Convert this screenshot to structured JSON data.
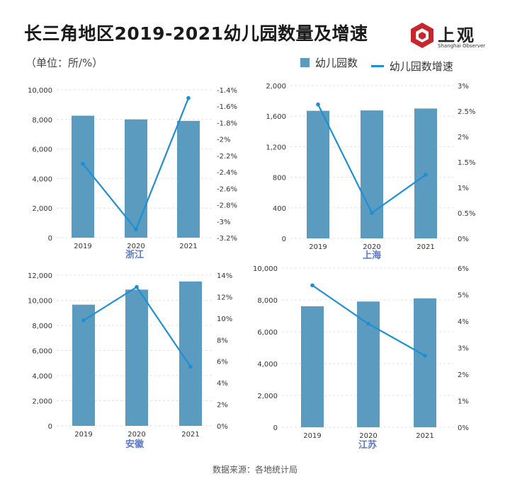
{
  "title": "长三角地区2019-2021幼儿园数量及增速",
  "unit": "（单位：所/%）",
  "logo": {
    "name": "上观",
    "sub": "Shanghai Observer"
  },
  "legend": {
    "bar": "幼儿园数",
    "line": "幼儿园数增速"
  },
  "source": "数据来源：各地统计局",
  "colors": {
    "bar": "#5b9bc0",
    "line": "#1e8fd2",
    "label": "#5b78c9",
    "logo_red": "#c8262c"
  },
  "chart_data": [
    {
      "type": "bar",
      "region": "浙江",
      "categories": [
        "2019",
        "2020",
        "2021"
      ],
      "series": [
        {
          "name": "幼儿园数",
          "type": "bar",
          "axis": "left",
          "values": [
            8250,
            8000,
            7900
          ]
        },
        {
          "name": "幼儿园数增速",
          "type": "line",
          "axis": "right",
          "values": [
            -2.3,
            -3.1,
            -1.5
          ]
        }
      ],
      "ylim_left": [
        0,
        10000
      ],
      "yticks_left": [
        "0",
        "2,000",
        "4,000",
        "6,000",
        "8,000",
        "10,000"
      ],
      "ylim_right": [
        -3.2,
        -1.4
      ],
      "yticks_right": [
        "-3.2%",
        "-3%",
        "-2.8%",
        "-2.6%",
        "-2.4%",
        "-2.2%",
        "-2%",
        "-1.8%",
        "-1.6%",
        "-1.4%"
      ],
      "grid": true
    },
    {
      "type": "bar",
      "region": "上海",
      "categories": [
        "2019",
        "2020",
        "2021"
      ],
      "series": [
        {
          "name": "幼儿园数",
          "type": "bar",
          "axis": "left",
          "values": [
            1670,
            1675,
            1700
          ]
        },
        {
          "name": "幼儿园数增速",
          "type": "line",
          "axis": "right",
          "values": [
            2.63,
            0.5,
            1.25
          ]
        }
      ],
      "ylim_left": [
        0,
        2000
      ],
      "yticks_left": [
        "0",
        "400",
        "800",
        "1,200",
        "1,600",
        "2,000"
      ],
      "ylim_right": [
        0,
        3
      ],
      "yticks_right": [
        "0%",
        "0.5%",
        "1%",
        "1.5%",
        "2%",
        "2.5%",
        "3%"
      ],
      "grid": true
    },
    {
      "type": "bar",
      "region": "安徽",
      "categories": [
        "2019",
        "2020",
        "2021"
      ],
      "series": [
        {
          "name": "幼儿园数",
          "type": "bar",
          "axis": "left",
          "values": [
            9650,
            10850,
            11500
          ]
        },
        {
          "name": "幼儿园数增速",
          "type": "line",
          "axis": "right",
          "values": [
            9.8,
            12.9,
            5.5
          ]
        }
      ],
      "ylim_left": [
        0,
        12000
      ],
      "yticks_left": [
        "0",
        "2,000",
        "4,000",
        "6,000",
        "8,000",
        "10,000",
        "12,000"
      ],
      "ylim_right": [
        0,
        14
      ],
      "yticks_right": [
        "0%",
        "2%",
        "4%",
        "6%",
        "8%",
        "10%",
        "12%",
        "14%"
      ],
      "grid": true
    },
    {
      "type": "bar",
      "region": "江苏",
      "categories": [
        "2019",
        "2020",
        "2021"
      ],
      "series": [
        {
          "name": "幼儿园数",
          "type": "bar",
          "axis": "left",
          "values": [
            7600,
            7900,
            8100
          ]
        },
        {
          "name": "幼儿园数增速",
          "type": "line",
          "axis": "right",
          "values": [
            5.35,
            3.9,
            2.7
          ]
        }
      ],
      "ylim_left": [
        0,
        10000
      ],
      "yticks_left": [
        "0",
        "2,000",
        "4,000",
        "6,000",
        "8,000",
        "10,000"
      ],
      "ylim_right": [
        0,
        6
      ],
      "yticks_right": [
        "0%",
        "1%",
        "2%",
        "3%",
        "4%",
        "5%",
        "6%"
      ],
      "grid": true
    }
  ]
}
